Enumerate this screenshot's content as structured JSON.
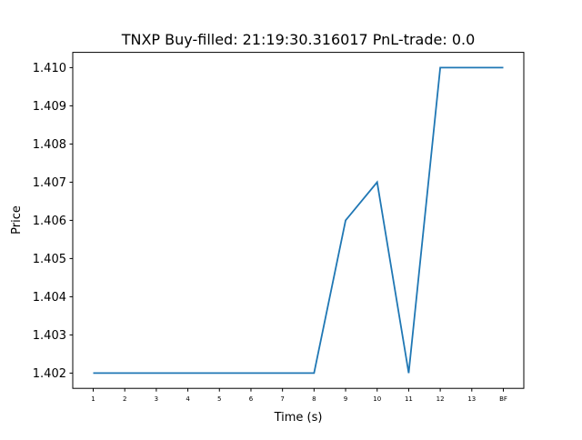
{
  "chart_data": {
    "type": "line",
    "title": "TNXP  Buy-filled:  21:19:30.316017  PnL-trade:  0.0",
    "xlabel": "Time (s)",
    "ylabel": "Price",
    "categories": [
      "1",
      "2",
      "3",
      "4",
      "5",
      "6",
      "7",
      "8",
      "9",
      "10",
      "11",
      "12",
      "13",
      "BF"
    ],
    "series": [
      {
        "values": [
          1.402,
          1.402,
          1.402,
          1.402,
          1.402,
          1.402,
          1.402,
          1.402,
          1.406,
          1.407,
          1.402,
          1.41,
          1.41,
          1.41
        ],
        "color": "#1f77b4"
      }
    ],
    "ylim": [
      1.4016,
      1.4104
    ],
    "yticks": [
      "1.402",
      "1.403",
      "1.404",
      "1.405",
      "1.406",
      "1.407",
      "1.408",
      "1.409",
      "1.410"
    ],
    "grid": false,
    "legend": "none"
  }
}
